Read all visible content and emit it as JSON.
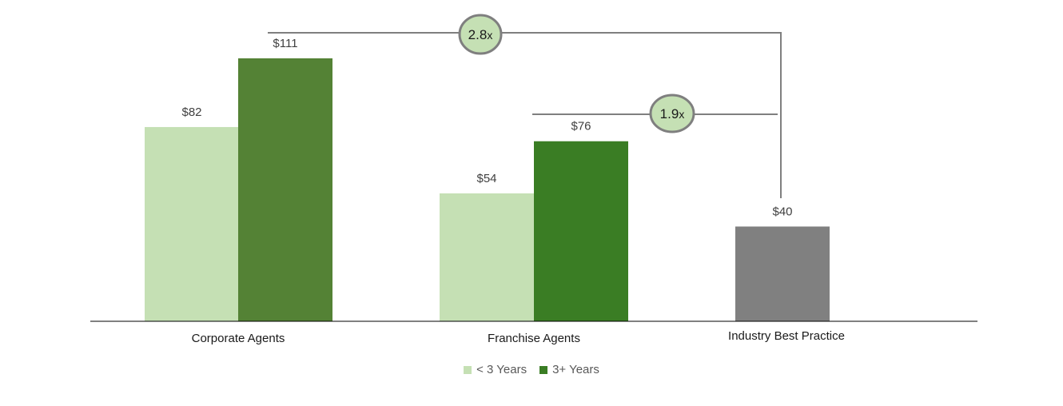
{
  "chart_data": {
    "type": "bar",
    "categories": [
      "Corporate Agents",
      "Franchise Agents",
      "Industry Best Practice"
    ],
    "series": [
      {
        "name": "< 3 Years",
        "color": "#C5E0B4",
        "values": [
          82,
          54,
          null
        ]
      },
      {
        "name": "3+ Years",
        "color": "#548235",
        "values": [
          111,
          76,
          null
        ]
      },
      {
        "name": "",
        "color": "#808080",
        "values": [
          null,
          null,
          40
        ]
      }
    ],
    "bar_colors_series2": [
      "#548235",
      "#3A7D24",
      null
    ],
    "value_labels": {
      "corporate_lt3": "$82",
      "corporate_3plus": "$111",
      "franchise_lt3": "$54",
      "franchise_3plus": "$76",
      "industry": "$40"
    },
    "ratio_callouts": [
      {
        "value": "2.8",
        "suffix": "x",
        "from": "Corporate Agents 3+ Years",
        "to": "Industry Best Practice"
      },
      {
        "value": "1.9",
        "suffix": "x",
        "from": "Franchise Agents 3+ Years",
        "to": "Industry Best Practice"
      }
    ],
    "ratio_fill": "#C5E0B4",
    "ratio_stroke": "#7F7F7F",
    "ylim": [
      0,
      111
    ],
    "grid": false,
    "legend_placement": "bottom"
  }
}
